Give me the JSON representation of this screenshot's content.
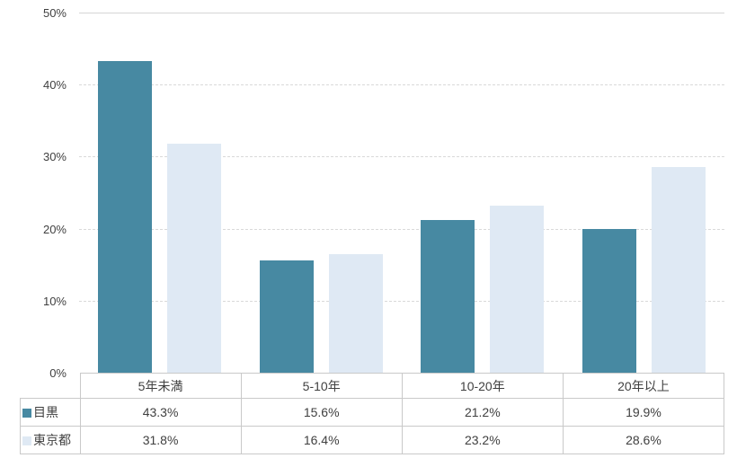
{
  "chart_data": {
    "type": "bar",
    "categories": [
      "5年未満",
      "5-10年",
      "10-20年",
      "20年以上"
    ],
    "series": [
      {
        "name": "目黒",
        "color": "#4789A2",
        "values": [
          43.3,
          15.6,
          21.2,
          19.9
        ],
        "labels": [
          "43.3%",
          "15.6%",
          "21.2%",
          "19.9%"
        ]
      },
      {
        "name": "東京都",
        "color": "#DFE9F4",
        "values": [
          31.8,
          16.4,
          23.2,
          28.6
        ],
        "labels": [
          "31.8%",
          "16.4%",
          "23.2%",
          "28.6%"
        ]
      }
    ],
    "title": "",
    "xlabel": "",
    "ylabel": "",
    "ylim": [
      0,
      50
    ],
    "ytick_step": 10,
    "yticks": [
      "0%",
      "10%",
      "20%",
      "30%",
      "40%",
      "50%"
    ],
    "grid": "horizontal-dashed",
    "legend_position": "table-left-keys",
    "value_format": "percent-one-decimal",
    "colors": {
      "series_1": "#4789A2",
      "series_2": "#DFE9F4",
      "gridline": "#d9d9d9",
      "table_border": "#c9c9c9",
      "text": "#404040",
      "background": "#ffffff"
    }
  }
}
